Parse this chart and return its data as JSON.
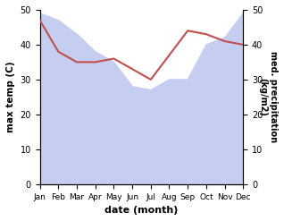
{
  "months": [
    "Jan",
    "Feb",
    "Mar",
    "Apr",
    "May",
    "Jun",
    "Jul",
    "Aug",
    "Sep",
    "Oct",
    "Nov",
    "Dec"
  ],
  "temperature": [
    47,
    38,
    35,
    35,
    36,
    33,
    30,
    37,
    44,
    43,
    41,
    40
  ],
  "precipitation": [
    49,
    47,
    43,
    38,
    35,
    28,
    27,
    30,
    30,
    40,
    42,
    49
  ],
  "temp_color": "#c0504d",
  "precip_fill_color": "#c5cef0",
  "precip_line_color": "#aab8e8",
  "ylabel_left": "max temp (C)",
  "ylabel_right": "med. precipitation\n(kg/m2)",
  "xlabel": "date (month)",
  "ylim_left": [
    0,
    50
  ],
  "ylim_right": [
    0,
    50
  ],
  "bg_color": "#ffffff"
}
